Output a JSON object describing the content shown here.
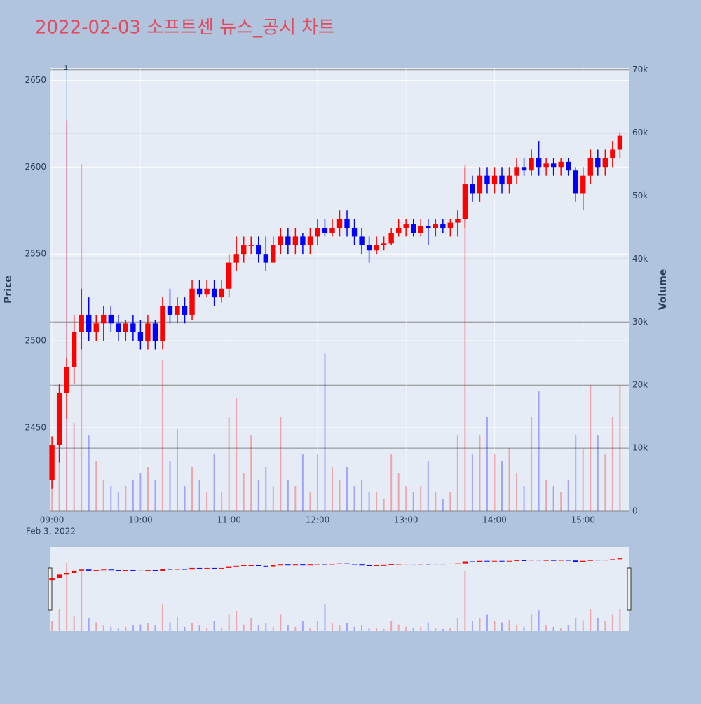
{
  "chart_data": {
    "type": "candlestick",
    "title": "2022-02-03 소프트센 뉴스_공시 차트",
    "y_label": "Price",
    "y2_label": "Volume",
    "date_label": "Feb 3, 2022",
    "up_color": "#ff0000",
    "down_color": "#0000ff",
    "grid": true,
    "annotation": {
      "x": "09:10",
      "text": "1"
    },
    "x": [
      "09:00",
      "09:05",
      "09:10",
      "09:15",
      "09:20",
      "09:25",
      "09:30",
      "09:35",
      "09:40",
      "09:45",
      "09:50",
      "09:55",
      "10:00",
      "10:05",
      "10:10",
      "10:15",
      "10:20",
      "10:25",
      "10:30",
      "10:35",
      "10:40",
      "10:45",
      "10:50",
      "10:55",
      "11:00",
      "11:05",
      "11:10",
      "11:15",
      "11:20",
      "11:25",
      "11:30",
      "11:35",
      "11:40",
      "11:45",
      "11:50",
      "11:55",
      "12:00",
      "12:05",
      "12:10",
      "12:15",
      "12:20",
      "12:25",
      "12:30",
      "12:35",
      "12:40",
      "12:45",
      "12:50",
      "12:55",
      "13:00",
      "13:05",
      "13:10",
      "13:15",
      "13:20",
      "13:25",
      "13:30",
      "13:35",
      "13:40",
      "13:45",
      "13:50",
      "13:55",
      "14:00",
      "14:05",
      "14:10",
      "14:15",
      "14:20",
      "14:25",
      "14:30",
      "14:35",
      "14:40",
      "14:45",
      "14:50",
      "14:55",
      "15:00",
      "15:05",
      "15:10",
      "15:15",
      "15:20",
      "15:25"
    ],
    "open": [
      2420,
      2440,
      2470,
      2485,
      2505,
      2515,
      2505,
      2510,
      2515,
      2510,
      2505,
      2510,
      2505,
      2500,
      2510,
      2500,
      2520,
      2515,
      2520,
      2515,
      2530,
      2527,
      2530,
      2525,
      2530,
      2545,
      2550,
      2555,
      2555,
      2550,
      2545,
      2555,
      2560,
      2555,
      2560,
      2555,
      2560,
      2565,
      2562,
      2565,
      2570,
      2565,
      2560,
      2555,
      2552,
      2555,
      2556,
      2562,
      2565,
      2567,
      2562,
      2566,
      2565,
      2567,
      2565,
      2568,
      2570,
      2590,
      2585,
      2595,
      2590,
      2595,
      2590,
      2595,
      2600,
      2598,
      2605,
      2600,
      2602,
      2600,
      2603,
      2598,
      2585,
      2595,
      2605,
      2600,
      2605,
      2610
    ],
    "high": [
      2445,
      2475,
      2490,
      2515,
      2530,
      2525,
      2515,
      2520,
      2520,
      2515,
      2512,
      2515,
      2512,
      2515,
      2512,
      2525,
      2530,
      2525,
      2525,
      2535,
      2535,
      2535,
      2535,
      2535,
      2550,
      2560,
      2560,
      2560,
      2560,
      2560,
      2560,
      2565,
      2565,
      2565,
      2562,
      2565,
      2570,
      2570,
      2570,
      2575,
      2575,
      2570,
      2565,
      2560,
      2560,
      2560,
      2565,
      2570,
      2570,
      2570,
      2570,
      2570,
      2570,
      2570,
      2570,
      2575,
      2600,
      2595,
      2600,
      2600,
      2600,
      2600,
      2600,
      2605,
      2605,
      2610,
      2615,
      2605,
      2605,
      2605,
      2605,
      2600,
      2600,
      2610,
      2610,
      2610,
      2615,
      2620
    ],
    "low": [
      2415,
      2430,
      2455,
      2475,
      2495,
      2500,
      2500,
      2500,
      2505,
      2500,
      2500,
      2500,
      2495,
      2495,
      2495,
      2495,
      2510,
      2510,
      2510,
      2512,
      2525,
      2525,
      2520,
      2522,
      2525,
      2540,
      2545,
      2550,
      2545,
      2540,
      2545,
      2550,
      2550,
      2550,
      2550,
      2550,
      2555,
      2560,
      2560,
      2560,
      2560,
      2555,
      2550,
      2545,
      2550,
      2552,
      2555,
      2560,
      2560,
      2560,
      2560,
      2555,
      2560,
      2562,
      2560,
      2560,
      2565,
      2580,
      2580,
      2585,
      2585,
      2585,
      2585,
      2590,
      2595,
      2595,
      2595,
      2595,
      2595,
      2595,
      2595,
      2580,
      2575,
      2590,
      2595,
      2595,
      2600,
      2605
    ],
    "close": [
      2440,
      2470,
      2485,
      2505,
      2515,
      2505,
      2510,
      2515,
      2510,
      2505,
      2510,
      2505,
      2500,
      2510,
      2500,
      2520,
      2515,
      2520,
      2515,
      2530,
      2527,
      2530,
      2525,
      2530,
      2545,
      2550,
      2555,
      2555,
      2550,
      2545,
      2555,
      2560,
      2555,
      2560,
      2555,
      2560,
      2565,
      2562,
      2565,
      2570,
      2565,
      2560,
      2555,
      2552,
      2555,
      2556,
      2562,
      2565,
      2567,
      2562,
      2566,
      2565,
      2567,
      2565,
      2568,
      2570,
      2590,
      2585,
      2595,
      2590,
      2595,
      2590,
      2595,
      2600,
      2598,
      2605,
      2600,
      2602,
      2600,
      2603,
      2598,
      2585,
      2595,
      2605,
      2600,
      2605,
      2610,
      2618
    ],
    "volume": [
      9000,
      20000,
      62000,
      14000,
      55000,
      12000,
      8000,
      5000,
      4000,
      3000,
      4000,
      5000,
      6000,
      7000,
      5000,
      24000,
      8000,
      13000,
      4000,
      7000,
      5000,
      3000,
      9000,
      3000,
      15000,
      18000,
      6000,
      12000,
      5000,
      7000,
      4000,
      15000,
      5000,
      4000,
      9000,
      3000,
      9000,
      25000,
      7000,
      5000,
      7000,
      4000,
      5000,
      3000,
      3000,
      2000,
      9000,
      6000,
      4000,
      3000,
      4000,
      8000,
      3000,
      2000,
      3000,
      12000,
      55000,
      9000,
      12000,
      15000,
      9000,
      8000,
      10000,
      6000,
      4000,
      15000,
      19000,
      5000,
      4000,
      3000,
      5000,
      12000,
      10000,
      20000,
      12000,
      9000,
      15000,
      20000
    ],
    "xlim": [
      "08:59",
      "15:31"
    ],
    "xticks": [
      "09:00",
      "10:00",
      "11:00",
      "12:00",
      "13:00",
      "14:00",
      "15:00"
    ],
    "ylim": [
      2402,
      2657
    ],
    "yticks": [
      2450,
      2500,
      2550,
      2600,
      2650
    ],
    "y2lim": [
      0,
      70300
    ],
    "y2ticks": [
      0,
      {
        "value": 10000,
        "label": "10k"
      },
      {
        "value": 20000,
        "label": "20k"
      },
      {
        "value": 30000,
        "label": "30k"
      },
      {
        "value": 40000,
        "label": "40k"
      },
      {
        "value": 50000,
        "label": "50k"
      },
      {
        "value": 60000,
        "label": "60k"
      },
      {
        "value": 70000,
        "label": "70k"
      }
    ]
  }
}
